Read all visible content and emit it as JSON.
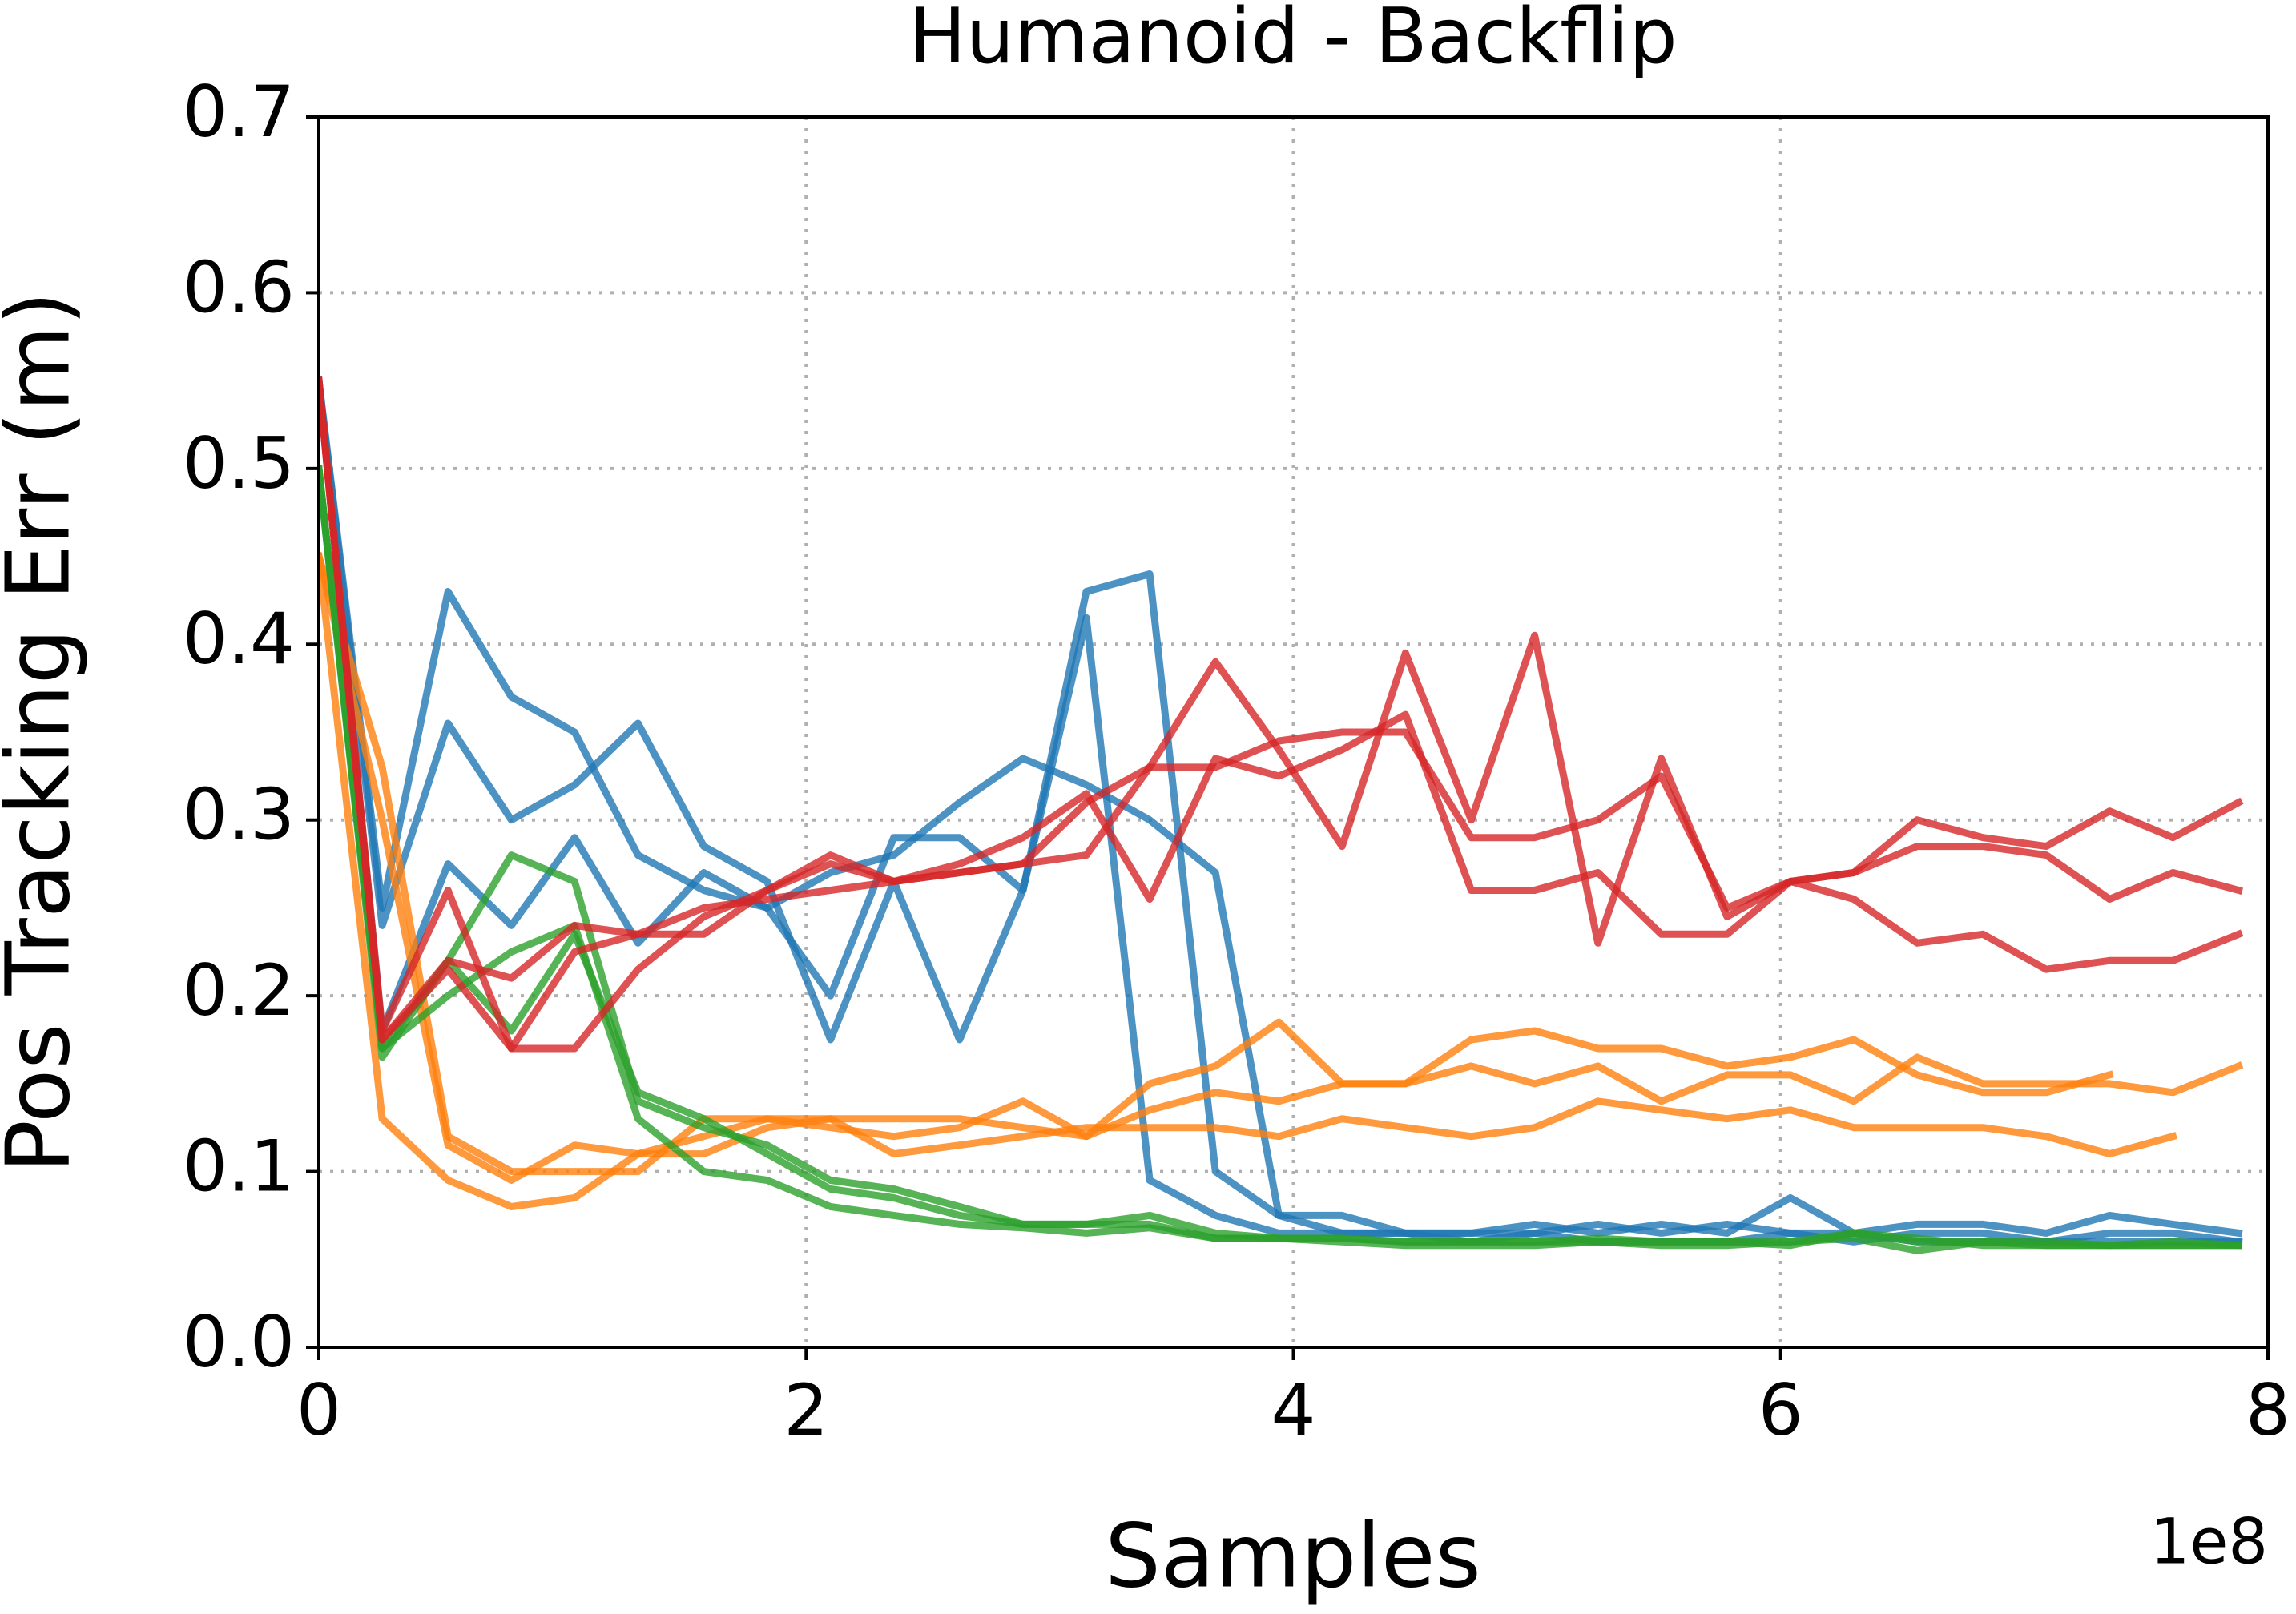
{
  "chart_data": {
    "type": "line",
    "title": "Humanoid - Backflip",
    "xlabel": "Samples",
    "ylabel": "Pos Tracking Err (m)",
    "x_offset_label": "1e8",
    "x": [
      0,
      0.26,
      0.53,
      0.79,
      1.05,
      1.31,
      1.58,
      1.84,
      2.1,
      2.36,
      2.63,
      2.89,
      3.15,
      3.41,
      3.68,
      3.94,
      4.2,
      4.46,
      4.73,
      4.99,
      5.25,
      5.51,
      5.78,
      6.04,
      6.3,
      6.56,
      6.83,
      7.09,
      7.35,
      7.61,
      7.88
    ],
    "xlim": [
      0,
      8
    ],
    "xticks": [
      0,
      2,
      4,
      6,
      8
    ],
    "ylim": [
      0,
      0.7
    ],
    "yticks": [
      {
        "value": 0,
        "label": "0.0"
      },
      0.1,
      0.2,
      0.3,
      0.4,
      0.5,
      0.6,
      0.7
    ],
    "grid": true,
    "line_opacity": 0.8,
    "series": [
      {
        "color": "#1f77b4",
        "values": [
          0.55,
          0.25,
          0.43,
          0.37,
          0.35,
          0.28,
          0.26,
          0.25,
          0.2,
          0.29,
          0.29,
          0.26,
          0.43,
          0.44,
          0.1,
          0.075,
          0.075,
          0.065,
          0.065,
          0.07,
          0.065,
          0.07,
          0.065,
          0.085,
          0.065,
          0.07,
          0.07,
          0.065,
          0.075,
          0.07,
          0.065
        ]
      },
      {
        "color": "#1f77b4",
        "values": [
          0.55,
          0.24,
          0.355,
          0.3,
          0.32,
          0.355,
          0.285,
          0.265,
          0.175,
          0.265,
          0.175,
          0.26,
          0.415,
          0.095,
          0.075,
          0.065,
          0.065,
          0.065,
          0.065,
          0.065,
          0.07,
          0.065,
          0.07,
          0.065,
          0.06,
          0.065,
          0.065,
          0.06,
          0.065,
          0.065,
          0.06
        ]
      },
      {
        "color": "#1f77b4",
        "values": [
          0.55,
          0.18,
          0.275,
          0.24,
          0.29,
          0.23,
          0.27,
          0.25,
          0.27,
          0.28,
          0.31,
          0.335,
          0.32,
          0.3,
          0.27,
          0.075,
          0.065,
          0.065,
          0.06,
          0.065,
          0.06,
          0.06,
          0.06,
          0.065,
          0.065,
          0.06,
          0.06,
          0.06,
          0.06,
          0.06,
          0.06
        ]
      },
      {
        "color": "#ff7f0e",
        "values": [
          0.45,
          0.33,
          0.12,
          0.1,
          0.1,
          0.1,
          0.13,
          0.13,
          0.13,
          0.13,
          0.13,
          0.125,
          0.12,
          0.15,
          0.16,
          0.185,
          0.15,
          0.15,
          0.175,
          0.18,
          0.17,
          0.17,
          0.16,
          0.165,
          0.175,
          0.155,
          0.145,
          0.145,
          0.155,
          null,
          null
        ]
      },
      {
        "color": "#ff7f0e",
        "values": [
          0.45,
          0.3,
          0.115,
          0.095,
          0.115,
          0.11,
          0.12,
          0.13,
          0.125,
          0.12,
          0.125,
          0.14,
          0.12,
          0.135,
          0.145,
          0.14,
          0.15,
          0.15,
          0.16,
          0.15,
          0.16,
          0.14,
          0.155,
          0.155,
          0.14,
          0.165,
          0.15,
          0.15,
          0.15,
          0.145,
          0.16
        ]
      },
      {
        "color": "#ff7f0e",
        "values": [
          0.45,
          0.13,
          0.095,
          0.08,
          0.085,
          0.11,
          0.11,
          0.125,
          0.13,
          0.11,
          0.115,
          0.12,
          0.125,
          0.125,
          0.125,
          0.12,
          0.13,
          0.125,
          0.12,
          0.125,
          0.14,
          0.135,
          0.13,
          0.135,
          0.125,
          0.125,
          0.125,
          0.12,
          0.11,
          0.12,
          null
        ]
      },
      {
        "color": "#2ca02c",
        "values": [
          0.5,
          0.17,
          0.22,
          0.28,
          0.265,
          0.14,
          0.125,
          0.115,
          0.095,
          0.09,
          0.08,
          0.07,
          0.07,
          0.075,
          0.065,
          0.062,
          0.062,
          0.06,
          0.06,
          0.06,
          0.06,
          0.06,
          0.06,
          0.06,
          0.065,
          0.06,
          0.06,
          0.06,
          0.058,
          0.058,
          0.058
        ]
      },
      {
        "color": "#2ca02c",
        "values": [
          0.5,
          0.165,
          0.22,
          0.18,
          0.235,
          0.145,
          0.13,
          0.11,
          0.09,
          0.085,
          0.075,
          0.07,
          0.07,
          0.07,
          0.062,
          0.062,
          0.06,
          0.058,
          0.058,
          0.058,
          0.06,
          0.058,
          0.058,
          0.06,
          0.062,
          0.055,
          0.06,
          0.058,
          0.058,
          0.06,
          0.058
        ]
      },
      {
        "color": "#2ca02c",
        "values": [
          0.5,
          0.17,
          0.2,
          0.225,
          0.24,
          0.13,
          0.1,
          0.095,
          0.08,
          0.075,
          0.07,
          0.068,
          0.065,
          0.068,
          0.062,
          0.062,
          0.062,
          0.06,
          0.06,
          0.06,
          0.062,
          0.06,
          0.06,
          0.058,
          0.065,
          0.062,
          0.058,
          0.058,
          0.058,
          0.058,
          0.058
        ]
      },
      {
        "color": "#d62728",
        "values": [
          0.55,
          0.18,
          0.26,
          0.17,
          0.17,
          0.215,
          0.245,
          0.26,
          0.275,
          0.265,
          0.27,
          0.275,
          0.28,
          0.33,
          0.39,
          0.34,
          0.285,
          0.395,
          0.3,
          0.405,
          0.23,
          0.335,
          0.245,
          0.265,
          0.27,
          0.3,
          0.29,
          0.285,
          0.305,
          0.29,
          0.31
        ]
      },
      {
        "color": "#d62728",
        "values": [
          0.55,
          0.175,
          0.22,
          0.21,
          0.24,
          0.235,
          0.235,
          0.26,
          0.28,
          0.265,
          0.275,
          0.29,
          0.315,
          0.255,
          0.335,
          0.325,
          0.34,
          0.36,
          0.26,
          0.26,
          0.27,
          0.235,
          0.235,
          0.265,
          0.27,
          0.285,
          0.285,
          0.28,
          0.255,
          0.27,
          0.26
        ]
      },
      {
        "color": "#d62728",
        "values": [
          0.55,
          0.175,
          0.215,
          0.17,
          0.225,
          0.235,
          0.25,
          0.255,
          0.26,
          0.265,
          0.27,
          0.275,
          0.31,
          0.33,
          0.33,
          0.345,
          0.35,
          0.35,
          0.29,
          0.29,
          0.3,
          0.325,
          0.25,
          0.265,
          0.255,
          0.23,
          0.235,
          0.215,
          0.22,
          0.22,
          0.235
        ]
      }
    ]
  }
}
